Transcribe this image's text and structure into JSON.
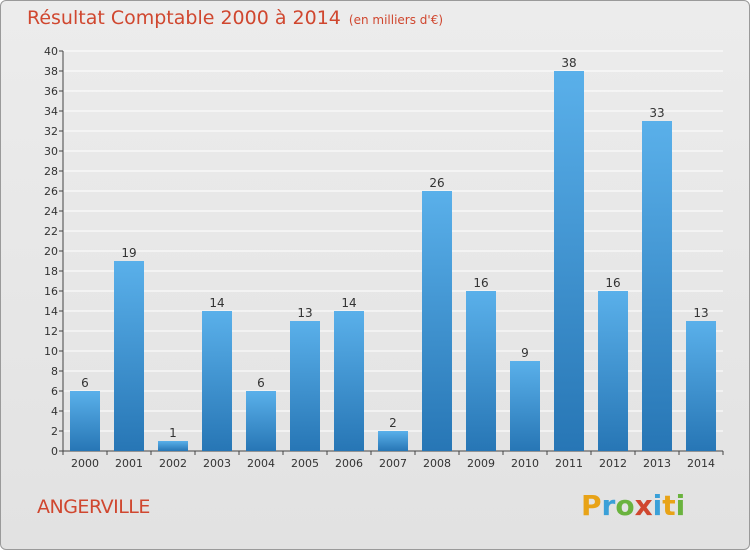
{
  "header": {
    "title": "Résultat Comptable 2000 à 2014",
    "subtitle": "(en milliers d'€)"
  },
  "footer": {
    "commune": "ANGERVILLE",
    "logo_letters": [
      "P",
      "r",
      "o",
      "x",
      "i",
      "t",
      "i"
    ],
    "logo_colors": [
      "#e8a317",
      "#3aa0d8",
      "#6ab33e",
      "#d0472f",
      "#3aa0d8",
      "#e8a317",
      "#6ab33e"
    ]
  },
  "colors": {
    "bar_top": "#5ab0ea",
    "bar_bottom": "#2776b5",
    "grid": "#ffffff",
    "axis": "#444444",
    "text": "#333333",
    "accent": "#d0472f"
  },
  "chart_data": {
    "type": "bar",
    "title": "Résultat Comptable 2000 à 2014",
    "subtitle": "(en milliers d'€)",
    "categories": [
      "2000",
      "2001",
      "2002",
      "2003",
      "2004",
      "2005",
      "2006",
      "2007",
      "2008",
      "2009",
      "2010",
      "2011",
      "2012",
      "2013",
      "2014"
    ],
    "values": [
      6,
      19,
      1,
      14,
      6,
      13,
      14,
      2,
      26,
      16,
      9,
      38,
      16,
      33,
      13
    ],
    "ylim": [
      0,
      40
    ],
    "ytick_step": 2,
    "grid": true,
    "data_labels": true
  }
}
